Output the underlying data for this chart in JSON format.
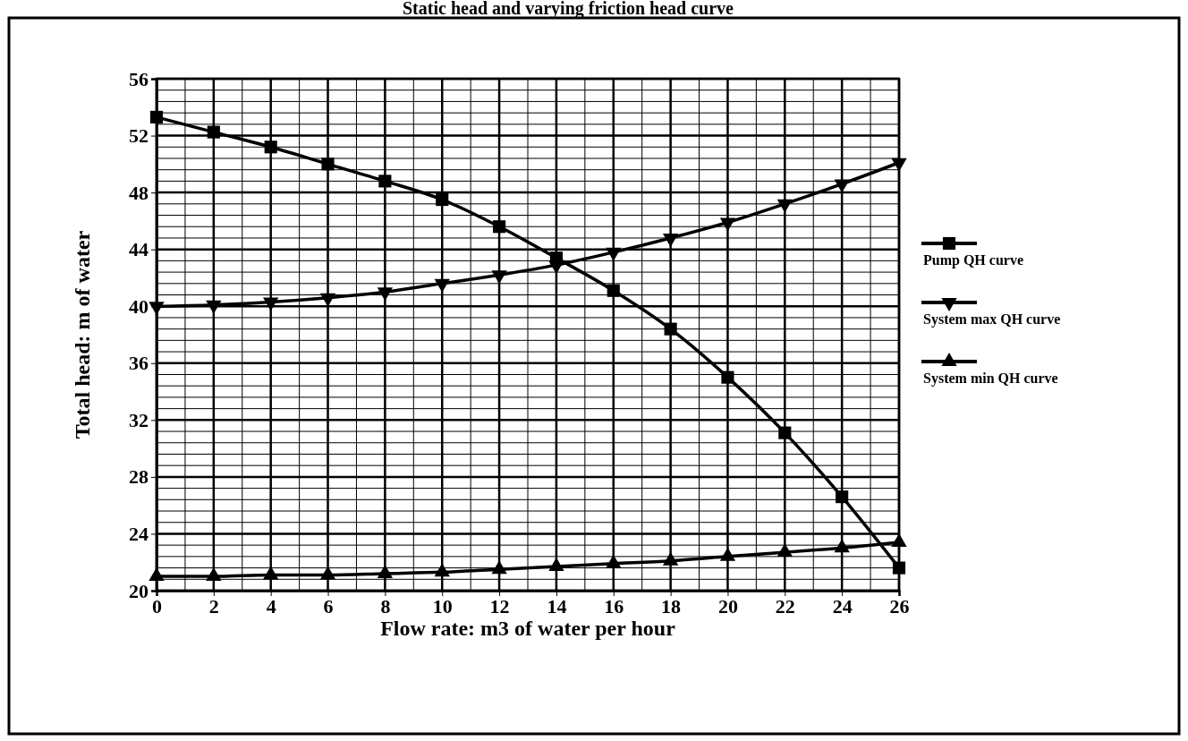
{
  "chart_data": {
    "type": "line",
    "title": "Static head and varying friction head curve",
    "xlabel": "Flow rate:  m3 of water per hour",
    "ylabel": "Total head:  m of water",
    "x": [
      0,
      2,
      4,
      6,
      8,
      10,
      12,
      14,
      16,
      18,
      20,
      22,
      24,
      26
    ],
    "xlim": [
      0,
      26
    ],
    "xticks": [
      0,
      2,
      4,
      6,
      8,
      10,
      12,
      14,
      16,
      18,
      20,
      22,
      24,
      26
    ],
    "ylim": [
      20,
      56
    ],
    "yticks": [
      20,
      24,
      28,
      32,
      36,
      40,
      44,
      48,
      52,
      56
    ],
    "grid": true,
    "legend": "right",
    "series": [
      {
        "name": "Pump QH curve",
        "color": "#000000",
        "marker": "square",
        "values": [
          53.3,
          52.25,
          51.2,
          50.0,
          48.8,
          47.5,
          45.6,
          43.4,
          41.1,
          38.4,
          35.0,
          31.1,
          26.6,
          21.6
        ]
      },
      {
        "name": "System max QH curve",
        "color": "#000000",
        "marker": "triangle-down",
        "values": [
          40.0,
          40.1,
          40.3,
          40.6,
          41.0,
          41.6,
          42.2,
          42.9,
          43.8,
          44.8,
          45.9,
          47.2,
          48.6,
          50.1
        ]
      },
      {
        "name": "System min QH curve",
        "color": "#000000",
        "marker": "triangle",
        "values": [
          21.0,
          21.0,
          21.1,
          21.1,
          21.2,
          21.3,
          21.5,
          21.7,
          21.9,
          22.1,
          22.4,
          22.7,
          23.0,
          23.4
        ]
      }
    ]
  }
}
